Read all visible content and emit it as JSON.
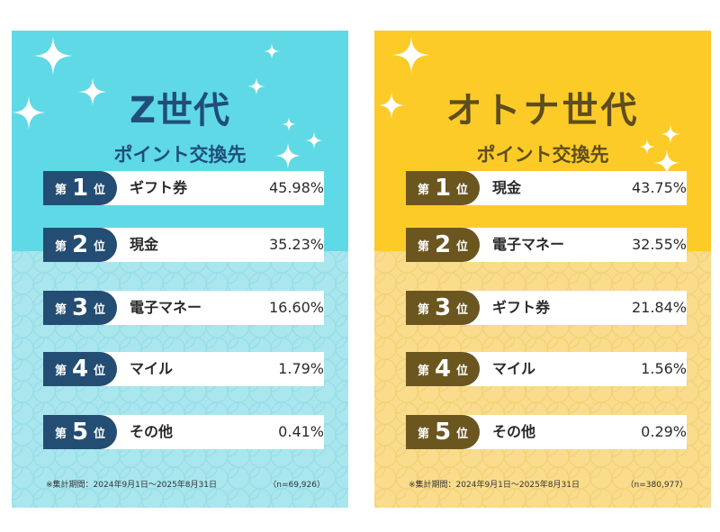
{
  "panels": [
    {
      "title": "Z世代",
      "subtitle": "ポイント交換先",
      "accent": "#5fd9e6",
      "ranks": [
        {
          "prefix": "第",
          "num": "1",
          "suffix": "位",
          "label": "ギフト券",
          "pct": "45.98%"
        },
        {
          "prefix": "第",
          "num": "2",
          "suffix": "位",
          "label": "現金",
          "pct": "35.23%"
        },
        {
          "prefix": "第",
          "num": "3",
          "suffix": "位",
          "label": "電子マネー",
          "pct": "16.60%"
        },
        {
          "prefix": "第",
          "num": "4",
          "suffix": "位",
          "label": "マイル",
          "pct": "1.79%"
        },
        {
          "prefix": "第",
          "num": "5",
          "suffix": "位",
          "label": "その他",
          "pct": "0.41%"
        }
      ],
      "note": "※集計期間：2024年9月1日～2025年8月31日",
      "n": "（n=69,926）"
    },
    {
      "title": "オトナ世代",
      "subtitle": "ポイント交換先",
      "accent": "#fccb27",
      "ranks": [
        {
          "prefix": "第",
          "num": "1",
          "suffix": "位",
          "label": "現金",
          "pct": "43.75%"
        },
        {
          "prefix": "第",
          "num": "2",
          "suffix": "位",
          "label": "電子マネー",
          "pct": "32.55%"
        },
        {
          "prefix": "第",
          "num": "3",
          "suffix": "位",
          "label": "ギフト券",
          "pct": "21.84%"
        },
        {
          "prefix": "第",
          "num": "4",
          "suffix": "位",
          "label": "マイル",
          "pct": "1.56%"
        },
        {
          "prefix": "第",
          "num": "5",
          "suffix": "位",
          "label": "その他",
          "pct": "0.29%"
        }
      ],
      "note": "※集計期間：2024年9月1日～2025年8月31日",
      "n": "（n=380,977）"
    }
  ]
}
